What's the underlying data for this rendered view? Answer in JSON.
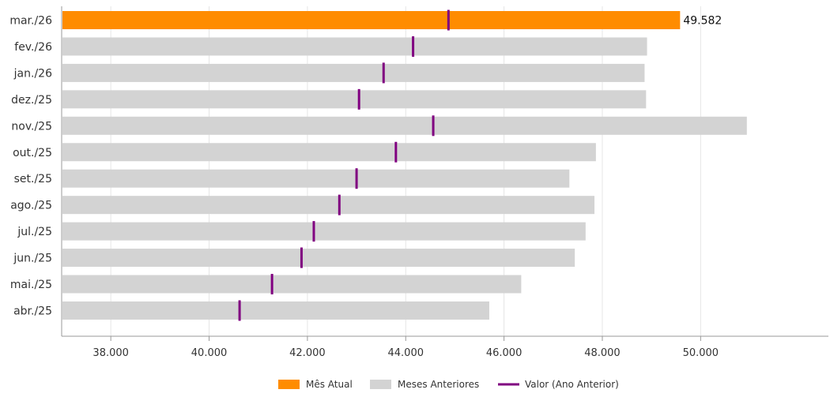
{
  "chart_data": {
    "type": "bar",
    "orientation": "horizontal",
    "categories": [
      "mar./26",
      "fev./26",
      "jan./26",
      "dez./25",
      "nov./25",
      "out./25",
      "set./25",
      "ago./25",
      "jul./25",
      "jun./25",
      "mai./25",
      "abr./25"
    ],
    "series": [
      {
        "name": "Mês Atual",
        "color": "#FF8C00",
        "values": [
          49582,
          null,
          null,
          null,
          null,
          null,
          null,
          null,
          null,
          null,
          null,
          null
        ]
      },
      {
        "name": "Meses Anteriores",
        "color": "#D3D3D3",
        "values": [
          null,
          48910,
          48860,
          48890,
          50940,
          47870,
          47330,
          47840,
          47660,
          47440,
          46350,
          45700
        ]
      },
      {
        "name": "Valor (Ano Anterior)",
        "color": "#800080",
        "marker": "vertical-line",
        "values": [
          44870,
          44150,
          43550,
          43050,
          44560,
          43800,
          43000,
          42650,
          42130,
          41880,
          41280,
          40620
        ]
      }
    ],
    "data_labels": [
      {
        "category": "mar./26",
        "text": "49.582"
      }
    ],
    "xlim": [
      37000,
      52600
    ],
    "xticks": [
      38000,
      40000,
      42000,
      44000,
      46000,
      48000,
      50000
    ],
    "xtick_labels": [
      "38.000",
      "40.000",
      "42.000",
      "44.000",
      "46.000",
      "48.000",
      "50.000"
    ],
    "grid": "vertical",
    "legend_position": "bottom-center",
    "legend": [
      {
        "label": "Mês Atual",
        "symbol": "square",
        "color": "#FF8C00"
      },
      {
        "label": "Meses Anteriores",
        "symbol": "square",
        "color": "#D3D3D3"
      },
      {
        "label": "Valor (Ano Anterior)",
        "symbol": "line",
        "color": "#800080"
      }
    ],
    "title": "",
    "xlabel": "",
    "ylabel": ""
  }
}
